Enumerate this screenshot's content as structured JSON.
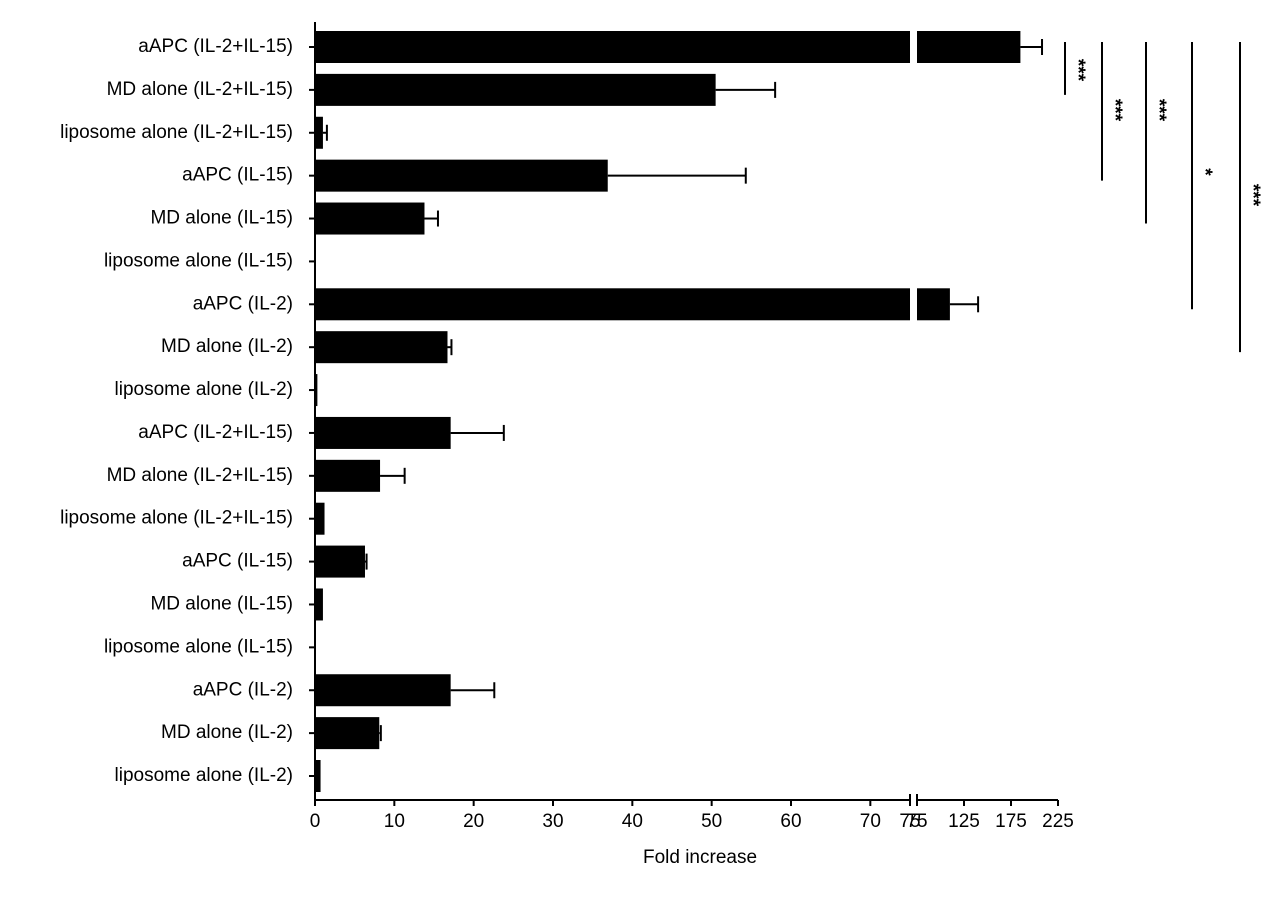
{
  "chart_data": {
    "type": "hbar",
    "x_label": "Fold increase",
    "categories": [
      "aAPC (IL-2+IL-15)",
      "MD alone (IL-2+IL-15)",
      "liposome alone (IL-2+IL-15)",
      "aAPC (IL-15)",
      "MD alone (IL-15)",
      "liposome alone (IL-15)",
      "aAPC (IL-2)",
      "MD alone (IL-2)",
      "liposome alone (IL-2)",
      "aAPC (IL-2+IL-15)",
      "MD alone (IL-2+IL-15)",
      "liposome alone (IL-2+IL-15)",
      "aAPC (IL-15)",
      "MD alone (IL-15)",
      "liposome alone (IL-15)",
      "aAPC (IL-2)",
      "MD alone (IL-2)",
      "liposome alone (IL-2)"
    ],
    "values": [
      185,
      50.5,
      1,
      36.9,
      13.8,
      0,
      110,
      16.7,
      0.3,
      17.1,
      8.2,
      1.2,
      6.3,
      1.0,
      0,
      17.1,
      8.1,
      0.7
    ],
    "errors": [
      23,
      7.5,
      0.5,
      17.4,
      1.7,
      0,
      30,
      0.5,
      0,
      6.7,
      3.1,
      0,
      0.2,
      0,
      0,
      5.5,
      0.2,
      0
    ],
    "color": "#000000",
    "x_segments": [
      {
        "xlim": [
          0,
          75
        ],
        "xticks": [
          0,
          10,
          20,
          30,
          40,
          50,
          60,
          70,
          75
        ]
      },
      {
        "xlim": [
          75,
          225
        ],
        "xticks": [
          75,
          125,
          175,
          225
        ]
      }
    ],
    "annotations": [
      {
        "text": "***",
        "from": 0,
        "to": 1
      },
      {
        "text": "***",
        "from": 0,
        "to": 3
      },
      {
        "text": "***",
        "from": 0,
        "to": 4
      },
      {
        "text": "*",
        "from": 0,
        "to": 6
      },
      {
        "text": "***",
        "from": 0,
        "to": 7
      }
    ]
  }
}
